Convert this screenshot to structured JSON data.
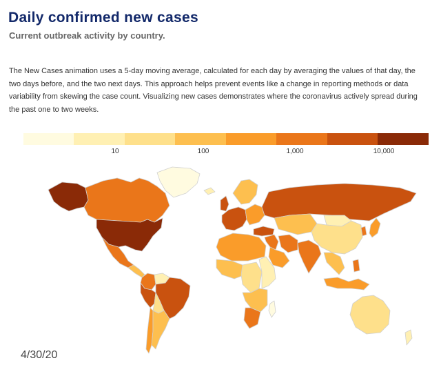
{
  "header": {
    "title": "Daily confirmed new cases",
    "subtitle": "Current outbreak activity by country."
  },
  "description": "The New Cases animation uses a 5-day moving average, calculated for each day by averaging the values of that day, the two days before, and the two next days. This approach helps prevent events like a change in reporting methods or data variability from skewing the case count. Visualizing new cases demonstrates where the coronavirus actively spread during the past one to two weeks.",
  "legend": {
    "colors": [
      "#fffbe0",
      "#fff0b3",
      "#fee08b",
      "#fdbf4f",
      "#fa9c2a",
      "#ea761a",
      "#c9520f",
      "#8a2a07"
    ],
    "ticks": [
      "10",
      "100",
      "1,000",
      "10,000"
    ]
  },
  "map": {
    "date": "4/30/20",
    "regions": [
      {
        "name": "Alaska",
        "level": 7
      },
      {
        "name": "Canada",
        "level": 5
      },
      {
        "name": "Greenland",
        "level": 0
      },
      {
        "name": "United States",
        "level": 7
      },
      {
        "name": "Mexico",
        "level": 5
      },
      {
        "name": "Central America",
        "level": 3
      },
      {
        "name": "Colombia",
        "level": 5
      },
      {
        "name": "Venezuela",
        "level": 1
      },
      {
        "name": "Brazil",
        "level": 6
      },
      {
        "name": "Peru",
        "level": 6
      },
      {
        "name": "Bolivia",
        "level": 2
      },
      {
        "name": "Chile",
        "level": 4
      },
      {
        "name": "Argentina",
        "level": 3
      },
      {
        "name": "Iceland",
        "level": 1
      },
      {
        "name": "Scandinavia",
        "level": 3
      },
      {
        "name": "United Kingdom",
        "level": 6
      },
      {
        "name": "Western Europe",
        "level": 6
      },
      {
        "name": "Eastern Europe",
        "level": 4
      },
      {
        "name": "Russia",
        "level": 6
      },
      {
        "name": "Turkey",
        "level": 6
      },
      {
        "name": "Middle East",
        "level": 5
      },
      {
        "name": "Saudi Arabia",
        "level": 4
      },
      {
        "name": "Iran",
        "level": 5
      },
      {
        "name": "Central Asia",
        "level": 3
      },
      {
        "name": "Mongolia",
        "level": 1
      },
      {
        "name": "China",
        "level": 2
      },
      {
        "name": "India",
        "level": 5
      },
      {
        "name": "Southeast Asia",
        "level": 4
      },
      {
        "name": "Japan",
        "level": 5
      },
      {
        "name": "Korea",
        "level": 3
      },
      {
        "name": "Indonesia",
        "level": 5
      },
      {
        "name": "Philippines",
        "level": 4
      },
      {
        "name": "North Africa",
        "level": 4
      },
      {
        "name": "West Africa",
        "level": 3
      },
      {
        "name": "Central Africa",
        "level": 2
      },
      {
        "name": "East Africa",
        "level": 1
      },
      {
        "name": "Southern Africa",
        "level": 3
      },
      {
        "name": "South Africa",
        "level": 5
      },
      {
        "name": "Madagascar",
        "level": 0
      },
      {
        "name": "Australia",
        "level": 2
      },
      {
        "name": "New Zealand",
        "level": 1
      }
    ]
  }
}
